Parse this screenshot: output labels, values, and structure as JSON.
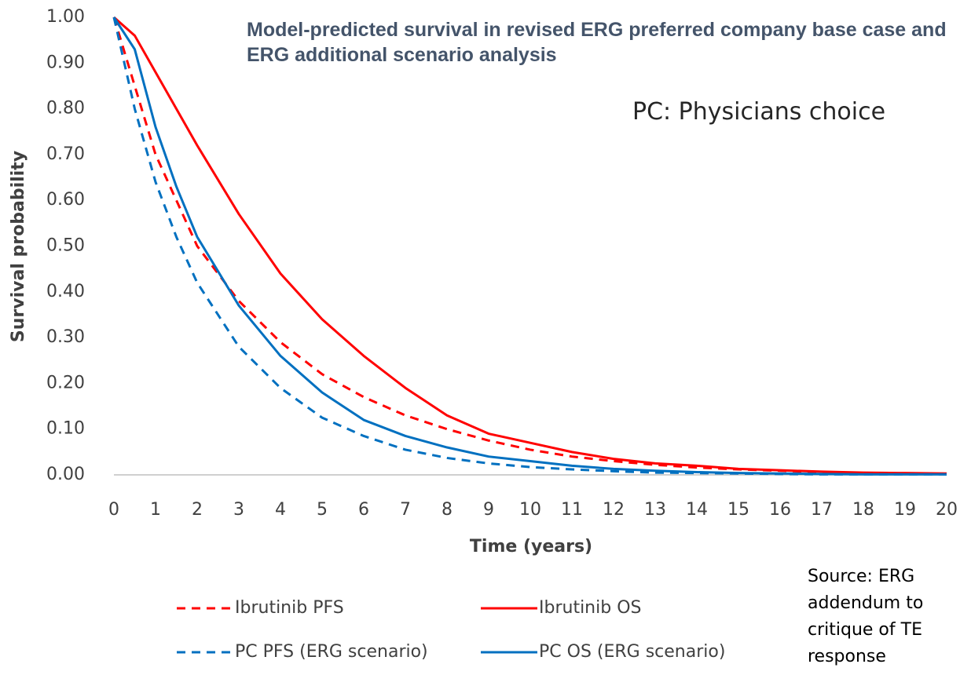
{
  "chart_data": {
    "type": "line",
    "title": "Model-predicted survival in revised ERG preferred company base case and ERG additional scenario analysis",
    "annotation": "PC: Physicians choice",
    "source": "Source: ERG addendum to critique of TE response",
    "x_label": "Time (years)",
    "y_label": "Survival probability",
    "x": [
      0,
      0.5,
      1,
      1.5,
      2,
      3,
      4,
      5,
      6,
      7,
      8,
      9,
      10,
      11,
      12,
      13,
      14,
      15,
      16,
      17,
      18,
      19,
      20
    ],
    "series": [
      {
        "name": "Ibrutinib PFS",
        "color": "#ff0000",
        "dashed": true,
        "values": [
          1.0,
          0.85,
          0.7,
          0.6,
          0.5,
          0.38,
          0.29,
          0.22,
          0.17,
          0.13,
          0.1,
          0.075,
          0.055,
          0.04,
          0.03,
          0.022,
          0.016,
          0.012,
          0.009,
          0.006,
          0.004,
          0.003,
          0.002
        ]
      },
      {
        "name": "Ibrutinib OS",
        "color": "#ff0000",
        "dashed": false,
        "values": [
          1.0,
          0.96,
          0.88,
          0.8,
          0.72,
          0.57,
          0.44,
          0.34,
          0.26,
          0.19,
          0.13,
          0.09,
          0.07,
          0.05,
          0.035,
          0.025,
          0.02,
          0.013,
          0.01,
          0.007,
          0.005,
          0.004,
          0.003
        ]
      },
      {
        "name": "PC PFS (ERG scenario)",
        "color": "#0070c0",
        "dashed": true,
        "values": [
          1.0,
          0.8,
          0.64,
          0.52,
          0.42,
          0.28,
          0.19,
          0.125,
          0.085,
          0.055,
          0.037,
          0.025,
          0.017,
          0.012,
          0.008,
          0.005,
          0.004,
          0.003,
          0.002,
          0.001,
          0.001,
          0.001,
          0.001
        ]
      },
      {
        "name": "PC OS (ERG scenario)",
        "color": "#0070c0",
        "dashed": false,
        "values": [
          1.0,
          0.93,
          0.76,
          0.63,
          0.52,
          0.37,
          0.26,
          0.18,
          0.12,
          0.085,
          0.06,
          0.04,
          0.03,
          0.02,
          0.013,
          0.009,
          0.006,
          0.004,
          0.003,
          0.002,
          0.001,
          0.001,
          0.001
        ]
      }
    ],
    "xlim": [
      0,
      20
    ],
    "xticks": [
      0,
      1,
      2,
      3,
      4,
      5,
      6,
      7,
      8,
      9,
      10,
      11,
      12,
      13,
      14,
      15,
      16,
      17,
      18,
      19,
      20
    ],
    "ylim": [
      0,
      1
    ],
    "yticks": [
      {
        "value": 0,
        "label": "0.00"
      },
      {
        "value": 0.1,
        "label": "0.10"
      },
      {
        "value": 0.2,
        "label": "0.20"
      },
      {
        "value": 0.3,
        "label": "0.30"
      },
      {
        "value": 0.4,
        "label": "0.40"
      },
      {
        "value": 0.5,
        "label": "0.50"
      },
      {
        "value": 0.6,
        "label": "0.60"
      },
      {
        "value": 0.7,
        "label": "0.70"
      },
      {
        "value": 0.8,
        "label": "0.80"
      },
      {
        "value": 0.9,
        "label": "0.90"
      },
      {
        "value": 1,
        "label": "1.00"
      }
    ],
    "grid": false
  }
}
